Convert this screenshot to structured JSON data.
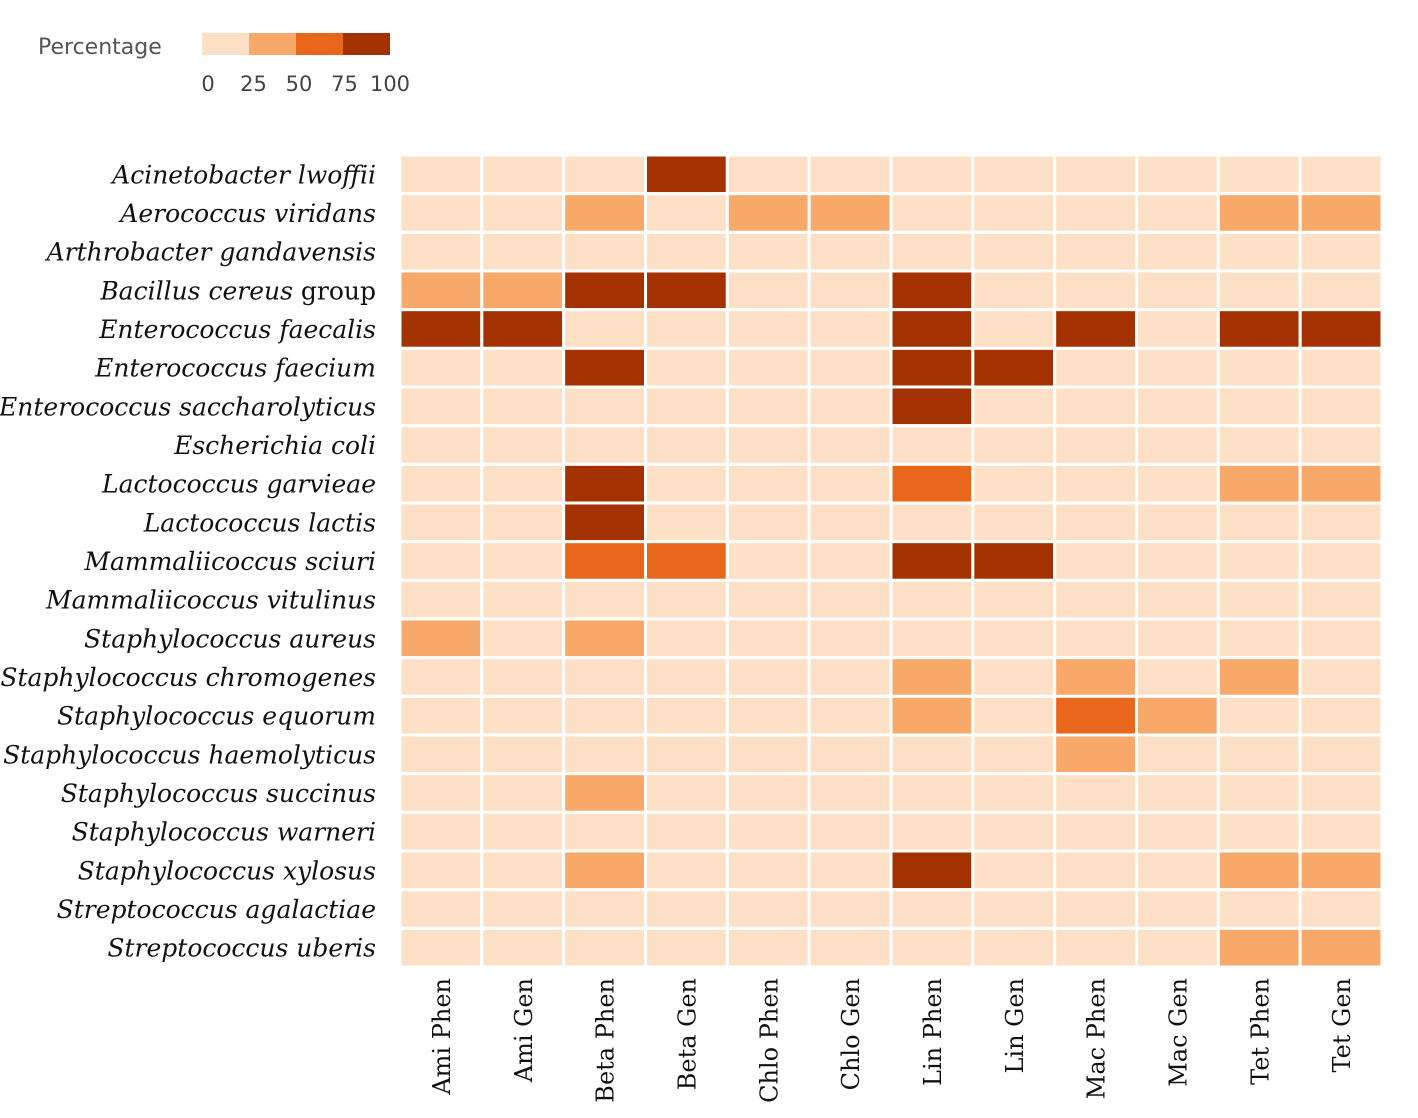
{
  "chart_data": {
    "type": "heatmap",
    "legend": {
      "title": "Percentage",
      "ticks": [
        "0",
        "25",
        "50",
        "75",
        "100"
      ],
      "bins": [
        {
          "range": [
            0,
            25
          ],
          "color": "#fde0c5"
        },
        {
          "range": [
            25,
            50
          ],
          "color": "#f8a96a"
        },
        {
          "range": [
            50,
            75
          ],
          "color": "#e8671b"
        },
        {
          "range": [
            75,
            100
          ],
          "color": "#a33200"
        }
      ]
    },
    "columns": [
      "Ami Phen",
      "Ami Gen",
      "Beta Phen",
      "Beta Gen",
      "Chlo Phen",
      "Chlo Gen",
      "Lin Phen",
      "Lin Gen",
      "Mac Phen",
      "Mac Gen",
      "Tet Phen",
      "Tet Gen"
    ],
    "rows": [
      {
        "italic": "Acinetobacter lwoffii",
        "plain": ""
      },
      {
        "italic": "Aerococcus viridans",
        "plain": ""
      },
      {
        "italic": "Arthrobacter gandavensis",
        "plain": ""
      },
      {
        "italic": "Bacillus cereus",
        "plain": " group"
      },
      {
        "italic": "Enterococcus faecalis",
        "plain": ""
      },
      {
        "italic": "Enterococcus faecium",
        "plain": ""
      },
      {
        "italic": "Enterococcus saccharolyticus",
        "plain": ""
      },
      {
        "italic": "Escherichia coli",
        "plain": ""
      },
      {
        "italic": "Lactococcus garvieae",
        "plain": ""
      },
      {
        "italic": "Lactococcus lactis",
        "plain": ""
      },
      {
        "italic": "Mammaliicoccus sciuri",
        "plain": ""
      },
      {
        "italic": "Mammaliicoccus vitulinus",
        "plain": ""
      },
      {
        "italic": "Staphylococcus aureus",
        "plain": ""
      },
      {
        "italic": "Staphylococcus chromogenes",
        "plain": ""
      },
      {
        "italic": "Staphylococcus equorum",
        "plain": ""
      },
      {
        "italic": "Staphylococcus haemolyticus",
        "plain": ""
      },
      {
        "italic": "Staphylococcus succinus",
        "plain": ""
      },
      {
        "italic": "Staphylococcus warneri",
        "plain": ""
      },
      {
        "italic": "Staphylococcus xylosus",
        "plain": ""
      },
      {
        "italic": "Streptococcus agalactiae",
        "plain": ""
      },
      {
        "italic": "Streptococcus uberis",
        "plain": ""
      }
    ],
    "values": [
      [
        0,
        0,
        0,
        100,
        0,
        0,
        0,
        0,
        0,
        0,
        0,
        0
      ],
      [
        0,
        0,
        40,
        0,
        40,
        40,
        0,
        0,
        0,
        0,
        40,
        40
      ],
      [
        0,
        0,
        0,
        0,
        0,
        0,
        0,
        0,
        0,
        0,
        0,
        0
      ],
      [
        40,
        40,
        100,
        100,
        0,
        0,
        100,
        0,
        0,
        0,
        0,
        0
      ],
      [
        100,
        100,
        0,
        0,
        0,
        0,
        100,
        0,
        100,
        0,
        100,
        100
      ],
      [
        0,
        0,
        100,
        0,
        0,
        0,
        100,
        100,
        0,
        0,
        0,
        0
      ],
      [
        0,
        0,
        0,
        0,
        0,
        0,
        100,
        0,
        0,
        0,
        0,
        0
      ],
      [
        0,
        0,
        0,
        0,
        0,
        0,
        0,
        0,
        0,
        0,
        0,
        0
      ],
      [
        0,
        0,
        100,
        0,
        0,
        0,
        60,
        0,
        0,
        0,
        40,
        40
      ],
      [
        0,
        0,
        100,
        0,
        0,
        0,
        0,
        0,
        0,
        0,
        0,
        0
      ],
      [
        0,
        0,
        60,
        60,
        0,
        0,
        100,
        100,
        0,
        0,
        0,
        0
      ],
      [
        0,
        0,
        0,
        0,
        0,
        0,
        0,
        0,
        0,
        0,
        0,
        0
      ],
      [
        40,
        0,
        40,
        0,
        0,
        0,
        0,
        0,
        0,
        0,
        0,
        0
      ],
      [
        0,
        0,
        0,
        0,
        0,
        0,
        40,
        0,
        40,
        0,
        40,
        0
      ],
      [
        0,
        0,
        0,
        0,
        0,
        0,
        40,
        0,
        60,
        40,
        0,
        0
      ],
      [
        0,
        0,
        0,
        0,
        0,
        0,
        0,
        0,
        40,
        0,
        0,
        0
      ],
      [
        0,
        0,
        40,
        0,
        0,
        0,
        0,
        0,
        0,
        0,
        0,
        0
      ],
      [
        0,
        0,
        0,
        0,
        0,
        0,
        0,
        0,
        0,
        0,
        0,
        0
      ],
      [
        0,
        0,
        40,
        0,
        0,
        0,
        100,
        0,
        0,
        0,
        40,
        40
      ],
      [
        0,
        0,
        0,
        0,
        0,
        0,
        0,
        0,
        0,
        0,
        0,
        0
      ],
      [
        0,
        0,
        0,
        0,
        0,
        0,
        0,
        0,
        0,
        0,
        40,
        40
      ]
    ]
  }
}
